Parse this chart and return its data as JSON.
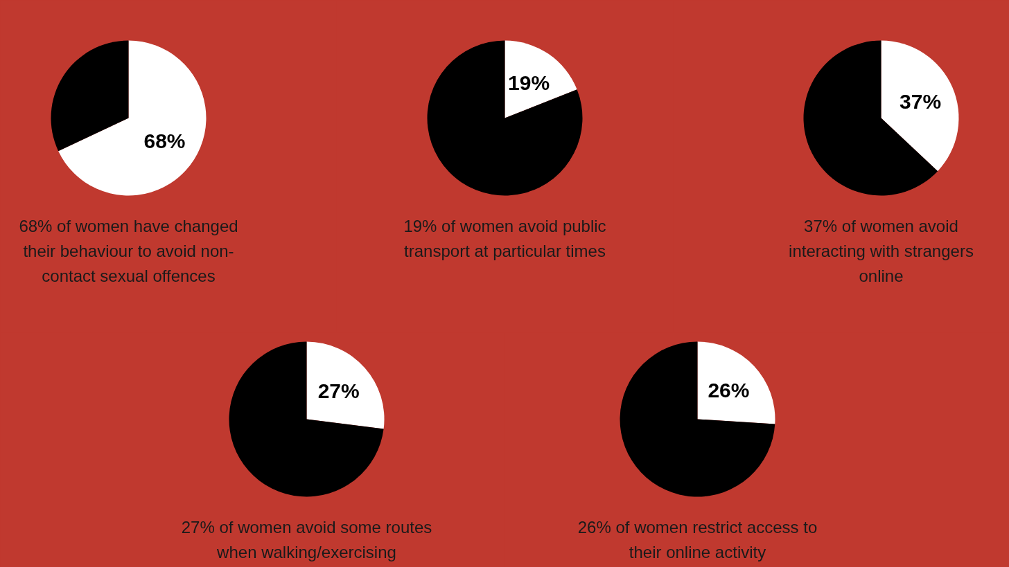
{
  "chart_data": [
    {
      "type": "pie",
      "categories": [
        null,
        null
      ],
      "values": [
        68,
        32
      ],
      "colors": [
        "#ffffff",
        "#000000"
      ],
      "value_labels": [
        "68%",
        null
      ],
      "annotations": [
        "68% of women have changed their behaviour to avoid non-contact sexual offences"
      ]
    },
    {
      "type": "pie",
      "categories": [
        null,
        null
      ],
      "values": [
        19,
        81
      ],
      "colors": [
        "#ffffff",
        "#000000"
      ],
      "value_labels": [
        "19%",
        null
      ],
      "annotations": [
        "19% of women avoid public transport at particular times"
      ]
    },
    {
      "type": "pie",
      "categories": [
        null,
        null
      ],
      "values": [
        37,
        63
      ],
      "colors": [
        "#ffffff",
        "#000000"
      ],
      "value_labels": [
        "37%",
        null
      ],
      "annotations": [
        "37% of women avoid interacting with strangers online"
      ]
    },
    {
      "type": "pie",
      "categories": [
        null,
        null
      ],
      "values": [
        27,
        73
      ],
      "colors": [
        "#ffffff",
        "#000000"
      ],
      "value_labels": [
        "27%",
        null
      ],
      "annotations": [
        "27% of women avoid some routes when walking/exercising"
      ]
    },
    {
      "type": "pie",
      "categories": [
        null,
        null
      ],
      "values": [
        26,
        74
      ],
      "colors": [
        "#ffffff",
        "#000000"
      ],
      "value_labels": [
        "26%",
        null
      ],
      "annotations": [
        "26% of women restrict access to their online activity"
      ]
    }
  ]
}
